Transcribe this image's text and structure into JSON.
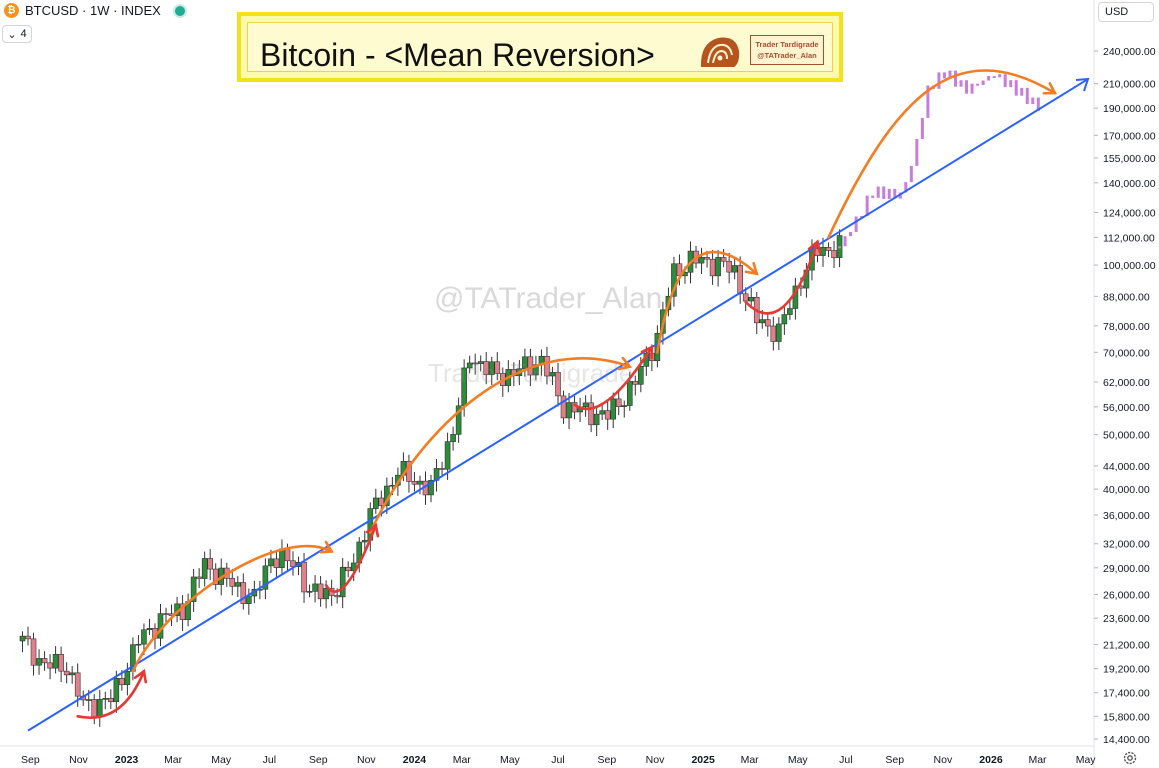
{
  "header": {
    "symbol_line": "BTCUSD · 1W · INDEX",
    "btc_glyph": "₿",
    "indicator_count": "4",
    "chevron": "⌄"
  },
  "currency": {
    "label": "USD",
    "icon": "chevron-down-icon"
  },
  "title_box": {
    "title": "Bitcoin - <Mean Reversion>",
    "badge_line1": "Trader Tardigrade",
    "badge_line2": "@TATrader_Alan"
  },
  "watermarks": [
    "@TATrader_Alan",
    "Trader Tardigrade"
  ],
  "colors": {
    "up": "#26a69a",
    "up_body": "#2e8b3a",
    "down": "#e0808a",
    "trend": "#2962ff",
    "arc_top": "#f57c20",
    "arc_bottom": "#e53935",
    "projection": "#c77ddb"
  },
  "chart_data": {
    "type": "candlestick",
    "title": "Bitcoin - <Mean Reversion>",
    "y_scale": "log",
    "ylim": [
      14000,
      250000
    ],
    "x_range": [
      "2022-08-22",
      "2026-05-18"
    ],
    "x_tick_labels": [
      "Sep",
      "Nov",
      "2023",
      "Mar",
      "May",
      "Jul",
      "Sep",
      "Nov",
      "2024",
      "Mar",
      "May",
      "Jul",
      "Sep",
      "Nov",
      "2025",
      "Mar",
      "May",
      "Jul",
      "Sep",
      "Nov",
      "2026",
      "Mar",
      "May"
    ],
    "x_tick_dates": [
      "2022-09-01",
      "2022-11-01",
      "2023-01-01",
      "2023-03-01",
      "2023-05-01",
      "2023-07-01",
      "2023-09-01",
      "2023-11-01",
      "2024-01-01",
      "2024-03-01",
      "2024-05-01",
      "2024-07-01",
      "2024-09-01",
      "2024-11-01",
      "2025-01-01",
      "2025-03-01",
      "2025-05-01",
      "2025-07-01",
      "2025-09-01",
      "2025-11-01",
      "2026-01-01",
      "2026-03-01",
      "2026-05-01"
    ],
    "y_ticks": [
      14400,
      15800,
      17400,
      19200,
      21200,
      23600,
      26000,
      29000,
      32000,
      36000,
      40000,
      44000,
      50000,
      56000,
      62000,
      70000,
      78000,
      88000,
      100000,
      112000,
      124000,
      140000,
      155000,
      170000,
      190000,
      210000,
      240000
    ],
    "y_tick_labels": [
      "14,400.00",
      "15,800.00",
      "17,400.00",
      "19,200.00",
      "21,200.00",
      "23,600.00",
      "26,000.00",
      "29,000.00",
      "32,000.00",
      "36,000.00",
      "40,000.00",
      "44,000.00",
      "50,000.00",
      "56,000.00",
      "62,000.00",
      "70,000.00",
      "78,000.00",
      "88,000.00",
      "100,000.00",
      "112,000.00",
      "124,000.00",
      "140,000.00",
      "155,000.00",
      "170,000.00",
      "190,000.00",
      "210,000.00",
      "240,000.00"
    ],
    "candle_anchors": [
      [
        "2022-08-22",
        21500
      ],
      [
        "2022-09-19",
        19500
      ],
      [
        "2022-10-17",
        19400
      ],
      [
        "2022-11-07",
        16500
      ],
      [
        "2022-12-12",
        16900
      ],
      [
        "2023-01-16",
        21500
      ],
      [
        "2023-02-13",
        23500
      ],
      [
        "2023-03-13",
        24500
      ],
      [
        "2023-04-10",
        29500
      ],
      [
        "2023-05-08",
        27500
      ],
      [
        "2023-06-12",
        25500
      ],
      [
        "2023-07-03",
        30500
      ],
      [
        "2023-08-07",
        29200
      ],
      [
        "2023-08-21",
        26000
      ],
      [
        "2023-09-25",
        26500
      ],
      [
        "2023-10-16",
        30000
      ],
      [
        "2023-11-06",
        36000
      ],
      [
        "2023-12-11",
        43000
      ],
      [
        "2024-01-22",
        40000
      ],
      [
        "2024-02-19",
        51000
      ],
      [
        "2024-03-11",
        69000
      ],
      [
        "2024-04-15",
        63500
      ],
      [
        "2024-05-13",
        65000
      ],
      [
        "2024-06-10",
        68000
      ],
      [
        "2024-07-08",
        56000
      ],
      [
        "2024-08-05",
        55000
      ],
      [
        "2024-09-02",
        54000
      ],
      [
        "2024-10-07",
        62000
      ],
      [
        "2024-11-04",
        75000
      ],
      [
        "2024-11-25",
        97000
      ],
      [
        "2024-12-16",
        102000
      ],
      [
        "2025-01-20",
        101000
      ],
      [
        "2025-02-10",
        97000
      ],
      [
        "2025-03-10",
        80000
      ],
      [
        "2025-04-07",
        76000
      ],
      [
        "2025-05-05",
        95000
      ],
      [
        "2025-05-26",
        106000
      ],
      [
        "2025-06-23",
        108000
      ]
    ],
    "projection_anchors": [
      [
        "2025-06-23",
        108000
      ],
      [
        "2025-07-14",
        120000
      ],
      [
        "2025-08-04",
        135000
      ],
      [
        "2025-09-08",
        133000
      ],
      [
        "2025-09-22",
        150000
      ],
      [
        "2025-10-13",
        205000
      ],
      [
        "2025-11-03",
        220000
      ],
      [
        "2025-12-01",
        205000
      ],
      [
        "2026-01-05",
        218000
      ],
      [
        "2026-02-02",
        205000
      ],
      [
        "2026-03-02",
        191000
      ]
    ],
    "trendline": [
      [
        "2022-08-29",
        14900
      ],
      [
        "2026-05-04",
        214000
      ]
    ],
    "top_arcs": [
      [
        [
          "2023-01-09",
          19000
        ],
        [
          "2023-02-20",
          25500
        ],
        [
          "2023-07-17",
          34500
        ],
        [
          "2023-09-18",
          31000
        ]
      ],
      [
        [
          "2023-11-06",
          33500
        ],
        [
          "2024-01-08",
          52000
        ],
        [
          "2024-05-20",
          77000
        ],
        [
          "2024-09-30",
          66000
        ]
      ],
      [
        [
          "2024-11-04",
          70000
        ],
        [
          "2024-11-25",
          105000
        ],
        [
          "2025-01-06",
          116000
        ],
        [
          "2025-03-10",
          96500
        ]
      ],
      [
        [
          "2025-06-09",
          112000
        ],
        [
          "2025-09-01",
          200000
        ],
        [
          "2025-11-17",
          258000
        ],
        [
          "2026-03-23",
          202000
        ]
      ]
    ],
    "bottom_arcs": [
      [
        [
          "2022-10-31",
          15800
        ],
        [
          "2022-12-26",
          15200
        ],
        [
          "2023-01-23",
          19000
        ]
      ],
      [
        [
          "2023-09-11",
          27000
        ],
        [
          "2023-10-02",
          24200
        ],
        [
          "2023-11-13",
          34500
        ]
      ],
      [
        [
          "2024-07-22",
          56500
        ],
        [
          "2024-08-26",
          52000
        ],
        [
          "2024-10-28",
          71500
        ]
      ],
      [
        [
          "2025-02-24",
          86000
        ],
        [
          "2025-04-14",
          73000
        ],
        [
          "2025-05-26",
          110000
        ]
      ]
    ]
  }
}
